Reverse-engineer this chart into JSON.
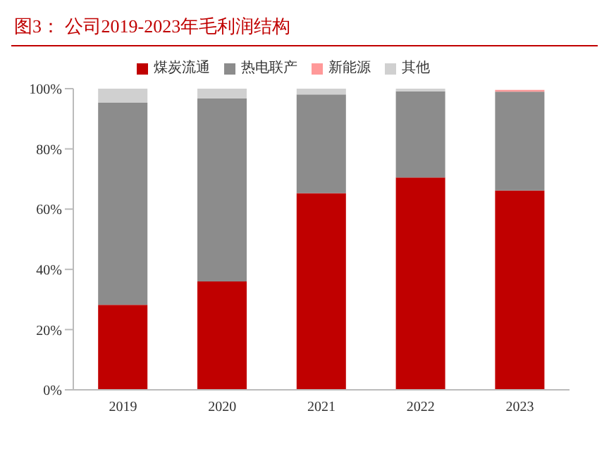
{
  "chart_data": {
    "type": "bar",
    "title": "图3：  公司2019-2023年毛利润结构",
    "stacked": true,
    "categories": [
      "2019",
      "2020",
      "2021",
      "2022",
      "2023"
    ],
    "series": [
      {
        "name": "煤炭流通",
        "color": "#c00000",
        "values": [
          28.2,
          36.0,
          65.3,
          70.5,
          66.2
        ]
      },
      {
        "name": "热电联产",
        "color": "#8c8c8c",
        "values": [
          67.1,
          60.7,
          32.8,
          28.6,
          32.8
        ]
      },
      {
        "name": "新能源",
        "color": "#ff9999",
        "values": [
          0,
          0,
          0,
          0,
          0.6
        ]
      },
      {
        "name": "其他",
        "color": "#d0d0d0",
        "values": [
          4.7,
          3.3,
          1.9,
          0.9,
          null
        ]
      }
    ],
    "ylim": [
      0,
      100
    ],
    "yticks": [
      {
        "value": 0,
        "label": "0%"
      },
      {
        "value": 20,
        "label": "20%"
      },
      {
        "value": 40,
        "label": "40%"
      },
      {
        "value": 60,
        "label": "60%"
      },
      {
        "value": 80,
        "label": "80%"
      },
      {
        "value": 100,
        "label": "100%"
      }
    ],
    "grid": false,
    "legend": "top"
  }
}
